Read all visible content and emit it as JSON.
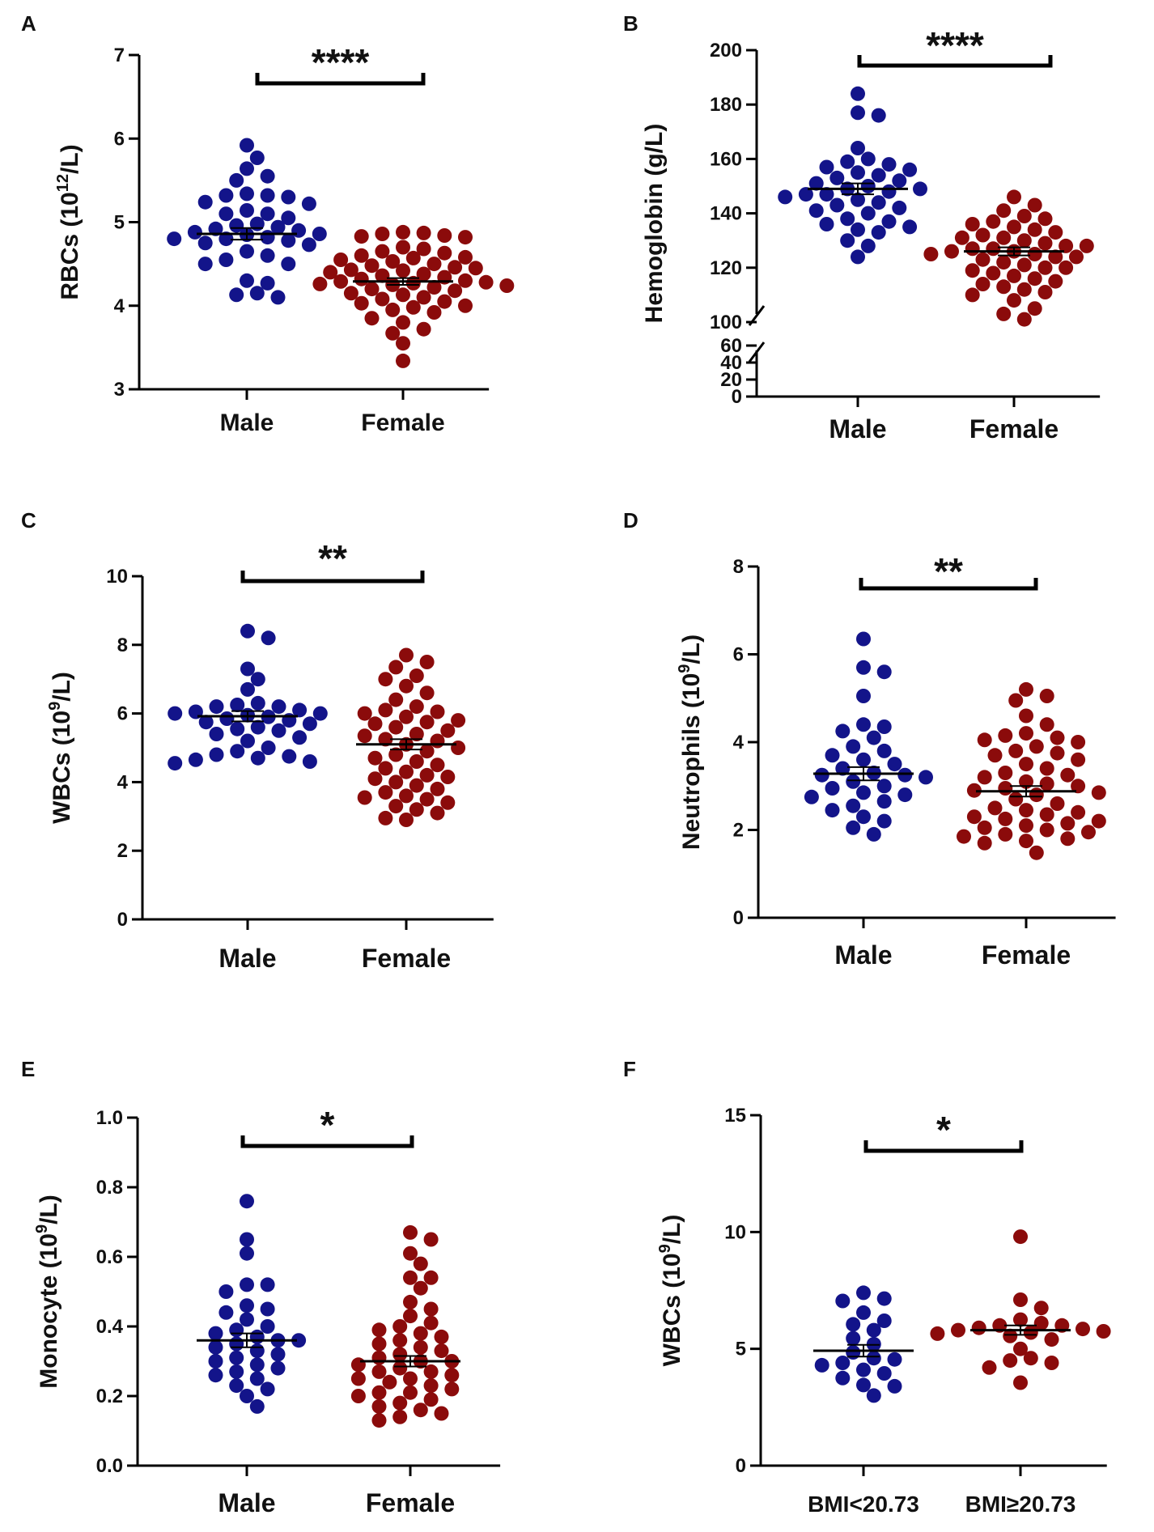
{
  "figure": {
    "colors": {
      "male": "#13148a",
      "female": "#8b0b0b",
      "axis": "#000000",
      "text": "#111111"
    }
  },
  "chart_data": [
    {
      "type": "scatter",
      "panel": "A",
      "ylabel_main": "RBCs (10",
      "ylabel_sup": "12",
      "ylabel_end": "/L)",
      "ylim": [
        3,
        7
      ],
      "ticks": [
        3,
        4,
        5,
        6,
        7
      ],
      "categories": [
        "Male",
        "Female"
      ],
      "significance": "****",
      "series": [
        {
          "name": "Male",
          "mean": 4.86,
          "sem": 0.07,
          "values": [
            5.92,
            5.77,
            5.64,
            5.55,
            5.5,
            5.34,
            5.32,
            5.32,
            5.3,
            5.24,
            5.22,
            5.14,
            5.1,
            5.1,
            5.05,
            4.98,
            4.96,
            4.94,
            4.92,
            4.9,
            4.88,
            4.86,
            4.85,
            4.82,
            4.8,
            4.8,
            4.78,
            4.75,
            4.73,
            4.65,
            4.6,
            4.55,
            4.5,
            4.5,
            4.3,
            4.27,
            4.15,
            4.13,
            4.1
          ]
        },
        {
          "name": "Female",
          "mean": 4.29,
          "sem": 0.04,
          "values": [
            4.88,
            4.87,
            4.86,
            4.84,
            4.83,
            4.82,
            4.7,
            4.68,
            4.65,
            4.63,
            4.6,
            4.58,
            4.57,
            4.55,
            4.53,
            4.5,
            4.48,
            4.46,
            4.45,
            4.43,
            4.42,
            4.4,
            4.38,
            4.36,
            4.34,
            4.32,
            4.3,
            4.29,
            4.28,
            4.27,
            4.26,
            4.25,
            4.24,
            4.22,
            4.2,
            4.18,
            4.15,
            4.13,
            4.1,
            4.08,
            4.05,
            4.03,
            4.0,
            3.98,
            3.95,
            3.92,
            3.85,
            3.8,
            3.72,
            3.67,
            3.55,
            3.34
          ]
        }
      ]
    },
    {
      "type": "scatter",
      "panel": "B",
      "ylabel_main": "Hemoglobin (g/L)",
      "ylabel_sup": "",
      "ylabel_end": "",
      "ylim": [
        100,
        200
      ],
      "ticks": [
        100,
        120,
        140,
        160,
        180,
        200
      ],
      "lower_segment": {
        "ylim": [
          0,
          60
        ],
        "ticks": [
          0,
          20,
          40,
          60
        ]
      },
      "categories": [
        "Male",
        "Female"
      ],
      "significance": "****",
      "series": [
        {
          "name": "Male",
          "mean": 149,
          "sem": 2,
          "values": [
            184,
            177,
            176,
            164,
            160,
            159,
            158,
            157,
            156,
            155,
            154,
            153,
            152,
            151,
            150,
            149,
            149,
            148,
            147,
            147,
            146,
            145,
            144,
            143,
            142,
            141,
            140,
            138,
            137,
            136,
            135,
            134,
            133,
            130,
            128,
            124
          ]
        },
        {
          "name": "Female",
          "mean": 126,
          "sem": 1.5,
          "values": [
            146,
            143,
            141,
            139,
            138,
            137,
            136,
            135,
            134,
            133,
            132,
            131,
            131,
            130,
            129,
            128,
            128,
            127,
            127,
            126,
            126,
            125,
            125,
            124,
            124,
            123,
            122,
            121,
            120,
            120,
            119,
            118,
            117,
            116,
            115,
            114,
            113,
            112,
            111,
            110,
            108,
            105,
            103,
            101
          ]
        }
      ]
    },
    {
      "type": "scatter",
      "panel": "C",
      "ylabel_main": "WBCs (10",
      "ylabel_sup": "9",
      "ylabel_end": "/L)",
      "ylim": [
        0,
        10
      ],
      "ticks": [
        0,
        2,
        4,
        6,
        8,
        10
      ],
      "categories": [
        "Male",
        "Female"
      ],
      "significance": "**",
      "series": [
        {
          "name": "Male",
          "mean": 5.92,
          "sem": 0.15,
          "values": [
            8.4,
            8.2,
            7.3,
            7.0,
            6.7,
            6.3,
            6.25,
            6.2,
            6.2,
            6.1,
            6.05,
            6.0,
            6.0,
            5.95,
            5.9,
            5.85,
            5.8,
            5.75,
            5.7,
            5.6,
            5.55,
            5.5,
            5.4,
            5.3,
            5.2,
            5.0,
            4.9,
            4.8,
            4.75,
            4.7,
            4.65,
            4.6,
            4.55
          ]
        },
        {
          "name": "Female",
          "mean": 5.1,
          "sem": 0.15,
          "values": [
            7.7,
            7.5,
            7.35,
            7.1,
            7.0,
            6.8,
            6.6,
            6.4,
            6.2,
            6.1,
            6.05,
            6.0,
            5.9,
            5.8,
            5.75,
            5.7,
            5.6,
            5.5,
            5.4,
            5.35,
            5.25,
            5.2,
            5.1,
            5.0,
            4.9,
            4.8,
            4.7,
            4.6,
            4.5,
            4.4,
            4.3,
            4.2,
            4.15,
            4.1,
            4.0,
            3.9,
            3.8,
            3.7,
            3.6,
            3.55,
            3.5,
            3.4,
            3.3,
            3.2,
            3.1,
            2.95,
            2.9
          ]
        }
      ]
    },
    {
      "type": "scatter",
      "panel": "D",
      "ylabel_main": "Neutrophils (10",
      "ylabel_sup": "9",
      "ylabel_end": "/L)",
      "ylim": [
        0,
        8
      ],
      "ticks": [
        0,
        2,
        4,
        6,
        8
      ],
      "categories": [
        "Male",
        "Female"
      ],
      "significance": "**",
      "series": [
        {
          "name": "Male",
          "mean": 3.28,
          "sem": 0.15,
          "values": [
            6.35,
            5.7,
            5.6,
            5.05,
            4.4,
            4.35,
            4.25,
            4.1,
            3.9,
            3.8,
            3.7,
            3.6,
            3.5,
            3.4,
            3.3,
            3.25,
            3.25,
            3.2,
            3.1,
            3.0,
            2.95,
            2.85,
            2.8,
            2.75,
            2.65,
            2.55,
            2.45,
            2.3,
            2.2,
            2.05,
            1.9
          ]
        },
        {
          "name": "Female",
          "mean": 2.88,
          "sem": 0.12,
          "values": [
            5.2,
            5.05,
            4.95,
            4.6,
            4.4,
            4.2,
            4.15,
            4.1,
            4.05,
            4.0,
            3.9,
            3.8,
            3.75,
            3.7,
            3.6,
            3.5,
            3.4,
            3.3,
            3.25,
            3.2,
            3.1,
            3.05,
            3.0,
            2.95,
            2.9,
            2.85,
            2.8,
            2.7,
            2.6,
            2.5,
            2.45,
            2.4,
            2.35,
            2.3,
            2.25,
            2.2,
            2.15,
            2.1,
            2.05,
            2.0,
            1.95,
            1.9,
            1.85,
            1.8,
            1.75,
            1.7,
            1.48
          ]
        }
      ]
    },
    {
      "type": "scatter",
      "panel": "E",
      "ylabel_main": "Monocyte (10",
      "ylabel_sup": "9",
      "ylabel_end": "/L)",
      "ylim": [
        0.0,
        1.0
      ],
      "ticks": [
        0.0,
        0.2,
        0.4,
        0.6,
        0.8,
        1.0
      ],
      "tick_decimals": 1,
      "categories": [
        "Male",
        "Female"
      ],
      "significance": "*",
      "series": [
        {
          "name": "Male",
          "mean": 0.36,
          "sem": 0.02,
          "values": [
            0.76,
            0.65,
            0.61,
            0.52,
            0.52,
            0.5,
            0.46,
            0.45,
            0.44,
            0.42,
            0.4,
            0.39,
            0.38,
            0.37,
            0.36,
            0.36,
            0.35,
            0.34,
            0.33,
            0.32,
            0.31,
            0.3,
            0.29,
            0.28,
            0.27,
            0.26,
            0.25,
            0.23,
            0.22,
            0.2,
            0.17
          ]
        },
        {
          "name": "Female",
          "mean": 0.3,
          "sem": 0.015,
          "values": [
            0.67,
            0.65,
            0.61,
            0.58,
            0.54,
            0.54,
            0.51,
            0.47,
            0.45,
            0.43,
            0.41,
            0.4,
            0.39,
            0.38,
            0.37,
            0.36,
            0.35,
            0.34,
            0.33,
            0.32,
            0.31,
            0.3,
            0.3,
            0.29,
            0.28,
            0.27,
            0.27,
            0.26,
            0.25,
            0.25,
            0.24,
            0.23,
            0.22,
            0.21,
            0.21,
            0.2,
            0.19,
            0.18,
            0.17,
            0.16,
            0.15,
            0.14,
            0.13
          ]
        }
      ]
    },
    {
      "type": "scatter",
      "panel": "F",
      "ylabel_main": "WBCs (10",
      "ylabel_sup": "9",
      "ylabel_end": "/L)",
      "ylim": [
        0,
        15
      ],
      "ticks": [
        0,
        5,
        10,
        15
      ],
      "categories": [
        "BMI<20.73",
        "BMI≥20.73"
      ],
      "significance": "*",
      "series": [
        {
          "name": "BMI<20.73",
          "mean": 4.92,
          "sem": 0.25,
          "values": [
            7.4,
            7.15,
            7.05,
            6.55,
            6.2,
            6.05,
            5.8,
            5.45,
            5.2,
            4.85,
            4.6,
            4.55,
            4.4,
            4.3,
            4.1,
            3.95,
            3.75,
            3.45,
            3.4,
            3.0
          ]
        },
        {
          "name": "BMI≥20.73",
          "mean": 5.8,
          "sem": 0.2,
          "values": [
            9.8,
            7.1,
            6.75,
            6.25,
            6.1,
            6.0,
            6.0,
            5.9,
            5.85,
            5.8,
            5.75,
            5.7,
            5.65,
            5.55,
            5.4,
            5.0,
            4.6,
            4.5,
            4.4,
            4.2,
            3.55
          ]
        }
      ]
    }
  ]
}
